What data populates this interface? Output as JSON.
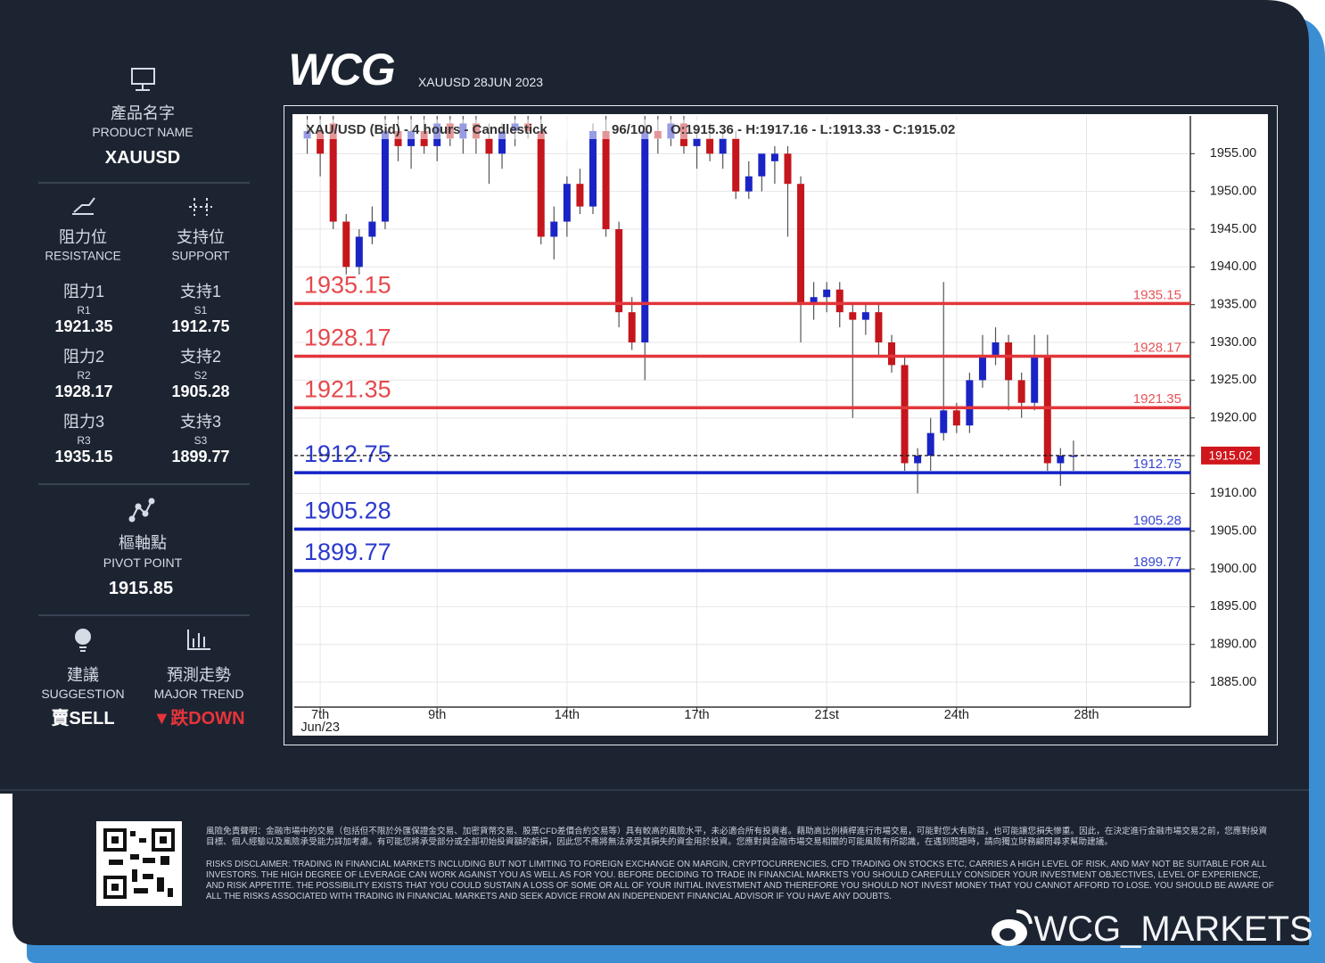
{
  "header": {
    "logo": "WCG",
    "subtitle": "XAUUSD 28JUN 2023"
  },
  "panel": {
    "product_name_zh": "產品名字",
    "product_name_en": "PRODUCT NAME",
    "product": "XAUUSD",
    "resistance_zh": "阻力位",
    "resistance_en": "RESISTANCE",
    "support_zh": "支持位",
    "support_en": "SUPPORT",
    "levels": [
      {
        "r_zh": "阻力1",
        "r_code": "R1",
        "r_value": 1921.35,
        "s_zh": "支持1",
        "s_code": "S1",
        "s_value": 1912.75
      },
      {
        "r_zh": "阻力2",
        "r_code": "R2",
        "r_value": 1928.17,
        "s_zh": "支持2",
        "s_code": "S2",
        "s_value": 1905.28
      },
      {
        "r_zh": "阻力3",
        "r_code": "R3",
        "r_value": 1935.15,
        "s_zh": "支持3",
        "s_code": "S3",
        "s_value": 1899.77
      }
    ],
    "pivot_zh": "樞軸點",
    "pivot_en": "PIVOT POINT",
    "pivot": 1915.85,
    "suggestion_zh": "建議",
    "suggestion_en": "SUGGESTION",
    "suggestion": "賣SELL",
    "trend_zh": "預測走勢",
    "trend_en": "MAJOR TREND",
    "trend": "▼跌DOWN"
  },
  "chart_data": {
    "type": "candlestick",
    "title": "XAU/USD (Bid) - 4 hours - Candlestick",
    "counter": "96/100",
    "ohlc_text": "O:1915.36 - H:1917.16 - L:1913.33 - C:1915.02",
    "up_color": "#1a24c4",
    "down_color": "#c4161c",
    "open": [
      1957,
      1958,
      1959,
      1946,
      1940,
      1944,
      1946,
      1958,
      1956,
      1958,
      1956,
      1959,
      1957,
      1959,
      1957,
      1955,
      1958,
      1959,
      1958,
      1944,
      1946,
      1951,
      1948,
      1958,
      1945,
      1934,
      1930,
      1958,
      1957,
      1959,
      1956,
      1957,
      1955,
      1957,
      1950,
      1952,
      1954,
      1955,
      1951,
      1935,
      1936,
      1937,
      1934,
      1933,
      1934,
      1930,
      1927,
      1914,
      1915,
      1918,
      1921,
      1919,
      1925,
      1928,
      1930,
      1925,
      1922,
      1928,
      1914,
      1915
    ],
    "high": [
      1960,
      1960,
      1960,
      1947,
      1945,
      1948,
      1960,
      1960,
      1960,
      1960,
      1960,
      1960,
      1960,
      1960,
      1959,
      1959,
      1960,
      1960,
      1960,
      1948,
      1952,
      1953,
      1959,
      1960,
      1946,
      1936,
      1960,
      1960,
      1960,
      1960,
      1958,
      1959,
      1958,
      1958,
      1954,
      1955,
      1956,
      1956,
      1952,
      1938,
      1938,
      1938,
      1935,
      1935,
      1935,
      1931,
      1928,
      1916,
      1920,
      1938,
      1922,
      1926,
      1931,
      1932,
      1931,
      1926,
      1931,
      1931,
      1916,
      1917
    ],
    "low": [
      1955,
      1952,
      1945,
      1939,
      1939,
      1943,
      1945,
      1954,
      1953,
      1955,
      1954,
      1956,
      1955,
      1955,
      1951,
      1953,
      1956,
      1957,
      1943,
      1941,
      1944,
      1947,
      1947,
      1944,
      1932,
      1929,
      1925,
      1955,
      1956,
      1955,
      1953,
      1954,
      1953,
      1949,
      1949,
      1950,
      1951,
      1944,
      1930,
      1933,
      1934,
      1932,
      1920,
      1931,
      1928,
      1926,
      1913,
      1910,
      1913,
      1917,
      1918,
      1918,
      1924,
      1927,
      1921,
      1920,
      1921,
      1913,
      1911,
      1913
    ],
    "close": [
      1958,
      1955,
      1946,
      1940,
      1944,
      1946,
      1958,
      1956,
      1958,
      1956,
      1959,
      1957,
      1959,
      1957,
      1955,
      1958,
      1959,
      1958,
      1944,
      1946,
      1951,
      1948,
      1958,
      1945,
      1934,
      1930,
      1958,
      1957,
      1959,
      1956,
      1957,
      1955,
      1957,
      1950,
      1952,
      1955,
      1955,
      1951,
      1935,
      1936,
      1937,
      1934,
      1933,
      1934,
      1930,
      1927,
      1914,
      1915,
      1918,
      1921,
      1919,
      1925,
      1928,
      1930,
      1925,
      1922,
      1928,
      1914,
      1915,
      1915.02
    ],
    "xlim": [
      -1,
      68
    ],
    "xticks": [
      {
        "value": 1,
        "label": "7th"
      },
      {
        "value": 10,
        "label": "9th"
      },
      {
        "value": 20,
        "label": "14th"
      },
      {
        "value": 30,
        "label": "17th"
      },
      {
        "value": 40,
        "label": "21st"
      },
      {
        "value": 50,
        "label": "24th"
      },
      {
        "value": 60,
        "label": "28th"
      }
    ],
    "x_sublabel": "Jun/23",
    "ylim": [
      1881.7,
      1960
    ],
    "yticks": [
      {
        "value": 1885,
        "label": "1885.00"
      },
      {
        "value": 1890,
        "label": "1890.00"
      },
      {
        "value": 1895,
        "label": "1895.00"
      },
      {
        "value": 1900,
        "label": "1900.00"
      },
      {
        "value": 1905,
        "label": "1905.00"
      },
      {
        "value": 1910,
        "label": "1910.00"
      },
      {
        "value": 1915,
        "label": "1915.00"
      },
      {
        "value": 1920,
        "label": "1920.00"
      },
      {
        "value": 1925,
        "label": "1925.00"
      },
      {
        "value": 1930,
        "label": "1930.00"
      },
      {
        "value": 1935,
        "label": "1935.00"
      },
      {
        "value": 1940,
        "label": "1940.00"
      },
      {
        "value": 1945,
        "label": "1945.00"
      },
      {
        "value": 1950,
        "label": "1950.00"
      },
      {
        "value": 1955,
        "label": "1955.00"
      }
    ],
    "grid": true,
    "levels": [
      {
        "value": 1935.15,
        "color": "#e2363a"
      },
      {
        "value": 1928.17,
        "color": "#e2363a"
      },
      {
        "value": 1921.35,
        "color": "#e2363a"
      },
      {
        "value": 1912.75,
        "color": "#1424c8"
      },
      {
        "value": 1905.28,
        "color": "#1424c8"
      },
      {
        "value": 1899.77,
        "color": "#1424c8"
      }
    ],
    "last_price": 1915.02,
    "last_price_color": "#d0161c"
  },
  "footer": {
    "disclaimer_zh": "風險免責聲明：金融市場中的交易（包括但不限於外匯保證金交易、加密貨幣交易、股票CFD差價合約交易等）具有較高的風險水平，未必適合所有投資者。藉助高比例槓桿進行市場交易，可能對您大有助益，也可能讓您損失慘重。因此，在決定進行金融市場交易之前，您應對投資目標、個人經驗以及風險承受能力詳加考慮。有可能您將承受部分或全部初始投資額的虧損，因此您不應將無法承受其損失的資金用於投資。您應對與金融市場交易相關的可能風險有所認識，在遇到問題時，請向獨立財務顧問尋求幫助建議。",
    "disclaimer_en": "RISKS DISCLAIMER: TRADING IN FINANCIAL MARKETS INCLUDING BUT NOT LIMITING TO FOREIGN EXCHANGE ON MARGIN, CRYPTOCURRENCIES, CFD TRADING ON STOCKS ETC, CARRIES A HIGH LEVEL OF RISK, AND MAY NOT BE SUITABLE FOR ALL INVESTORS. THE HIGH DEGREE OF LEVERAGE CAN WORK AGAINST YOU AS WELL AS FOR YOU. BEFORE DECIDING TO TRADE IN FINANCIAL MARKETS YOU SHOULD CAREFULLY CONSIDER YOUR INVESTMENT OBJECTIVES, LEVEL OF EXPERIENCE, AND RISK APPETITE. THE POSSIBILITY EXISTS THAT YOU COULD SUSTAIN A LOSS OF SOME OR ALL OF YOUR INITIAL INVESTMENT AND THEREFORE YOU SHOULD NOT INVEST MONEY THAT YOU CANNOT AFFORD TO LOSE. YOU SHOULD BE AWARE OF ALL THE RISKS ASSOCIATED WITH TRADING IN FINANCIAL MARKETS AND SEEK ADVICE FROM AN INDEPENDENT FINANCIAL ADVISOR IF YOU HAVE ANY DOUBTS.",
    "watermark": "WCG_MARKETS"
  }
}
